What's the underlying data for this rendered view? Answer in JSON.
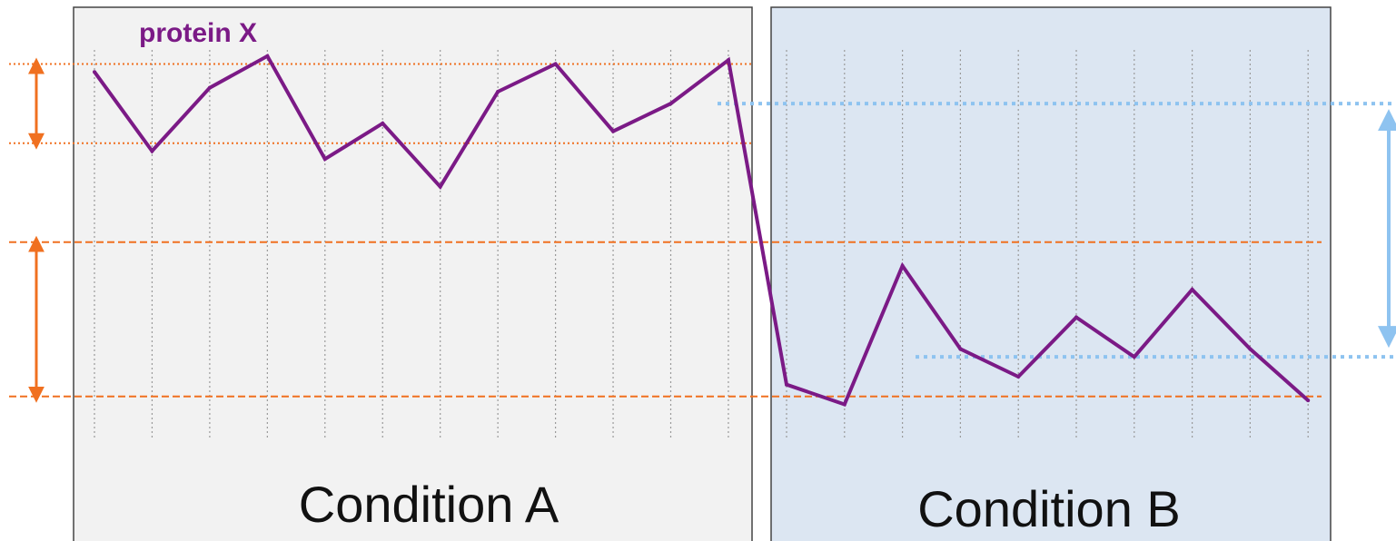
{
  "title": "protein X",
  "panels": [
    {
      "label": "Condition A",
      "background": "#f2f2f2"
    },
    {
      "label": "Condition B",
      "background": "#dce6f2"
    }
  ],
  "colors": {
    "series": "#7b1a86",
    "range_a": "#f07020",
    "range_b": "#8ec3f0",
    "panel_border": "#444444",
    "sample_lines": "#9a9a9a"
  },
  "chart_data": {
    "type": "line",
    "series": [
      {
        "name": "protein X",
        "values": [
          0.91,
          0.71,
          0.87,
          0.95,
          0.69,
          0.78,
          0.62,
          0.86,
          0.93,
          0.76,
          0.83,
          0.94,
          0.12,
          0.07,
          0.42,
          0.21,
          0.14,
          0.29,
          0.19,
          0.36,
          0.21,
          0.08
        ]
      }
    ],
    "condition_a_points": 12,
    "condition_b_points": 10,
    "ranges": [
      {
        "condition": "Condition A",
        "low": 0.73,
        "high": 0.93,
        "style": "dotted"
      },
      {
        "condition": "Condition A",
        "low": 0.09,
        "high": 0.48,
        "style": "dashed"
      },
      {
        "condition": "Condition B",
        "low": 0.19,
        "high": 0.83,
        "style": "dotted"
      }
    ],
    "ylim": [
      0,
      1
    ]
  }
}
